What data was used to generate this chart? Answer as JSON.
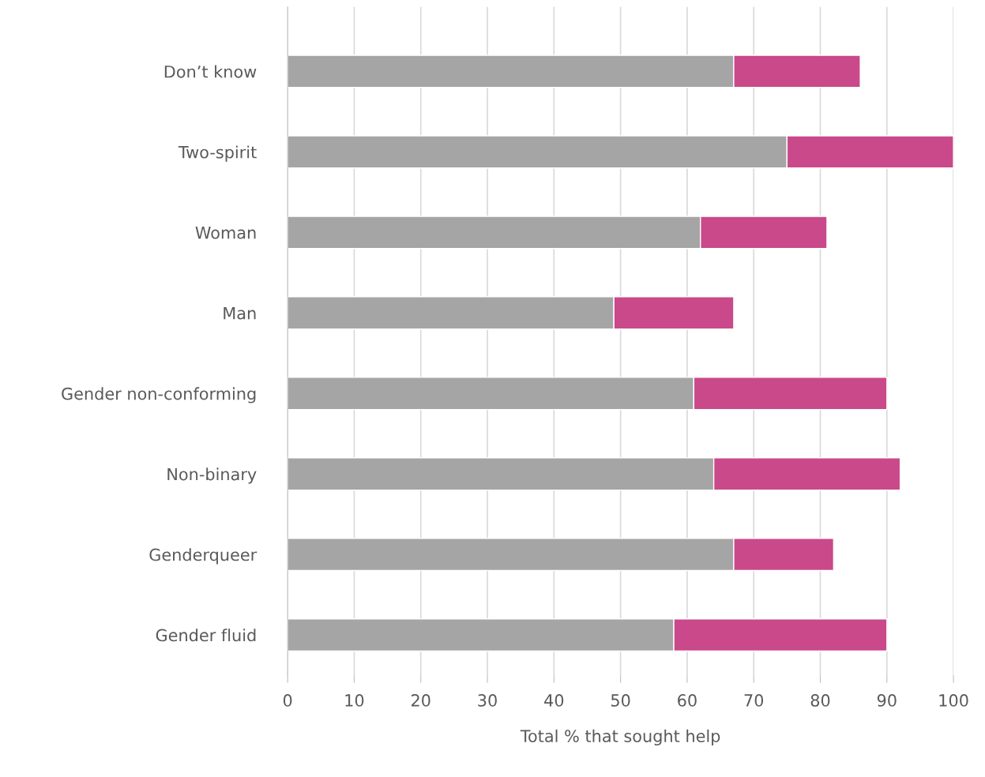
{
  "chart_data": {
    "type": "bar",
    "orientation": "horizontal",
    "stacked": true,
    "categories": [
      "Don’t know",
      "Two-spirit",
      "Woman",
      "Man",
      "Gender non-conforming",
      "Non-binary",
      "Genderqueer",
      "Gender fluid"
    ],
    "series": [
      {
        "color": "#a5a5a5",
        "values": [
          67,
          75,
          62,
          49,
          61,
          64,
          67,
          58
        ]
      },
      {
        "color": "#c9498a",
        "values": [
          19,
          25,
          19,
          18,
          29,
          28,
          15,
          32
        ]
      }
    ],
    "xlim": [
      0,
      100
    ],
    "xticks": [
      0,
      10,
      20,
      30,
      40,
      50,
      60,
      70,
      80,
      90,
      100
    ],
    "xlabel": "Total % that sought help",
    "grid": "x",
    "legend": false
  }
}
